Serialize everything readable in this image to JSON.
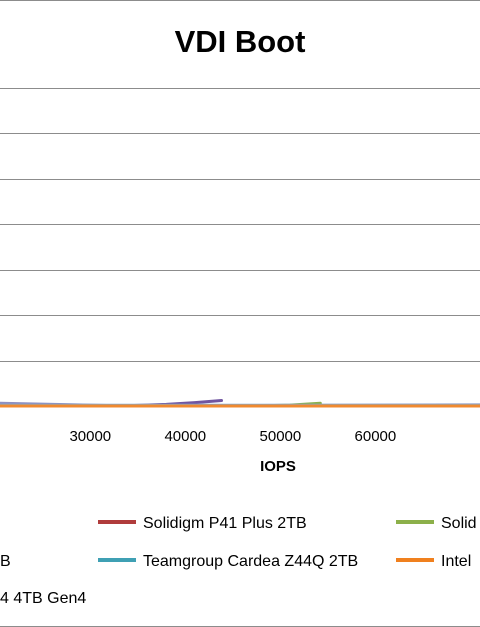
{
  "chart_data": {
    "type": "line",
    "title": "VDI Boot",
    "xlabel": "IOPS",
    "ylabel": "",
    "xlim": [
      20500,
      71000
    ],
    "ylim": [
      0,
      70
    ],
    "x_ticks": [
      30000,
      40000,
      50000,
      60000
    ],
    "y_gridlines": [
      10,
      20,
      30,
      40,
      50,
      60,
      70
    ],
    "grid": true,
    "legend_position": "bottom",
    "series": [
      {
        "name": "",
        "color": "#8f8fc0",
        "x": [
          20500,
          33000,
          71000
        ],
        "y": [
          0.6,
          0.05,
          0.25
        ]
      },
      {
        "name": "",
        "color": "#7055a0",
        "x": [
          33000,
          38000,
          41000,
          43800
        ],
        "y": [
          0.0,
          0.35,
          0.75,
          1.2
        ]
      },
      {
        "name": "",
        "color": "#8cb04a",
        "x": [
          47000,
          51000,
          54200
        ],
        "y": [
          0.0,
          0.2,
          0.6
        ]
      },
      {
        "name": "",
        "color": "#7ea8d0",
        "x": [
          20500,
          71000
        ],
        "y": [
          0.15,
          0.15
        ]
      },
      {
        "name": "",
        "color": "#f08a30",
        "x": [
          20500,
          71000
        ],
        "y": [
          0.0,
          0.0
        ]
      }
    ],
    "legend": [
      {
        "label": "Solidigm P41 Plus 2TB",
        "color": "#b03c3c"
      },
      {
        "label": "Solid",
        "color": "#8cb04a"
      },
      {
        "label": "B",
        "color": null
      },
      {
        "label": "Teamgroup Cardea Z44Q 2TB",
        "color": "#3fa0b4"
      },
      {
        "label": "Intel",
        "color": "#f0801e"
      },
      {
        "label": "4 4TB Gen4",
        "color": null
      }
    ]
  }
}
